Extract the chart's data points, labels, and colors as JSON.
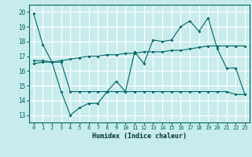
{
  "title": "",
  "xlabel": "Humidex (Indice chaleur)",
  "ylabel": "",
  "bg_color": "#c8ecec",
  "grid_color": "#ffffff",
  "line_color": "#006666",
  "xlim": [
    -0.5,
    23.5
  ],
  "ylim": [
    12.5,
    20.5
  ],
  "xticks": [
    0,
    1,
    2,
    3,
    4,
    5,
    6,
    7,
    8,
    9,
    10,
    11,
    12,
    13,
    14,
    15,
    16,
    17,
    18,
    19,
    20,
    21,
    22,
    23
  ],
  "yticks": [
    13,
    14,
    15,
    16,
    17,
    18,
    19,
    20
  ],
  "line1_x": [
    0,
    1,
    2,
    3,
    4,
    5,
    6,
    7,
    8,
    9,
    10,
    11,
    12,
    13,
    14,
    15,
    16,
    17,
    18,
    19,
    20,
    21,
    22,
    23
  ],
  "line1_y": [
    19.9,
    17.8,
    16.6,
    14.6,
    13.0,
    13.5,
    13.8,
    13.8,
    14.6,
    15.3,
    14.6,
    17.3,
    16.5,
    18.1,
    18.0,
    18.1,
    19.0,
    19.4,
    18.7,
    19.6,
    17.5,
    16.2,
    16.2,
    14.4
  ],
  "line2_x": [
    0,
    1,
    2,
    3,
    4,
    5,
    6,
    7,
    8,
    9,
    10,
    11,
    12,
    13,
    14,
    15,
    16,
    17,
    18,
    19,
    20,
    21,
    22,
    23
  ],
  "line2_y": [
    16.7,
    16.7,
    16.6,
    16.6,
    14.6,
    14.6,
    14.6,
    14.6,
    14.6,
    14.6,
    14.6,
    14.6,
    14.6,
    14.6,
    14.6,
    14.6,
    14.6,
    14.6,
    14.6,
    14.6,
    14.6,
    14.6,
    14.4,
    14.4
  ],
  "line3_x": [
    0,
    1,
    2,
    3,
    4,
    5,
    6,
    7,
    8,
    9,
    10,
    11,
    12,
    13,
    14,
    15,
    16,
    17,
    18,
    19,
    20,
    21,
    22,
    23
  ],
  "line3_y": [
    16.5,
    16.6,
    16.6,
    16.7,
    16.8,
    16.9,
    17.0,
    17.0,
    17.1,
    17.1,
    17.2,
    17.2,
    17.3,
    17.3,
    17.3,
    17.4,
    17.4,
    17.5,
    17.6,
    17.7,
    17.7,
    17.7,
    17.7,
    17.7
  ]
}
